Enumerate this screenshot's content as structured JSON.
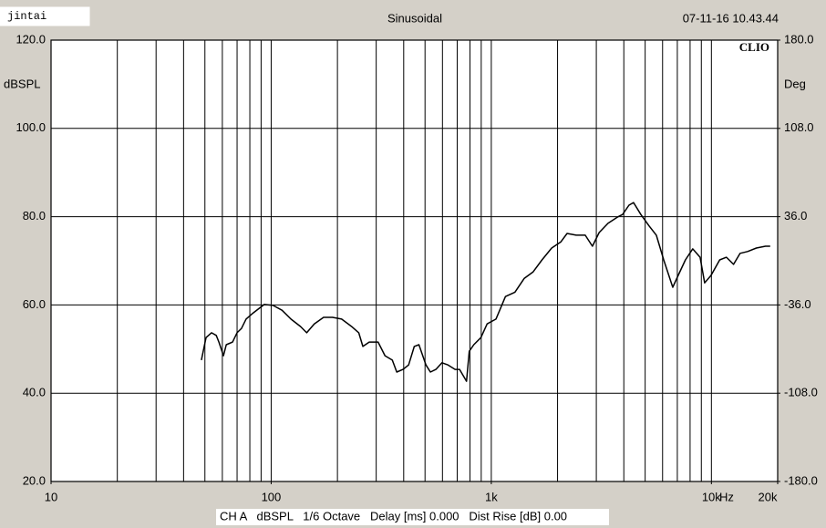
{
  "chart_data": {
    "type": "line",
    "title": "Sinusoidal",
    "user": "jintai",
    "timestamp": "07-11-16 10.43.44",
    "logo": "CLIO",
    "ylabel": "dBSPL",
    "y2label": "Deg",
    "xunit": "Hz",
    "footer": "CH A   dBSPL   1/6 Octave   Delay [ms] 0.000   Dist Rise [dB] 0.00",
    "xscale": "log",
    "xlim": [
      10,
      20000
    ],
    "xticks": [
      10,
      100,
      {
        "value": 1000,
        "label": "1k"
      },
      {
        "value": 10000,
        "label": "10k"
      },
      {
        "value": 20000,
        "label": "20k"
      }
    ],
    "xgrid": [
      20,
      30,
      40,
      50,
      60,
      70,
      80,
      90,
      100,
      200,
      300,
      400,
      500,
      600,
      700,
      800,
      900,
      1000,
      2000,
      3000,
      4000,
      5000,
      6000,
      7000,
      8000,
      9000,
      10000
    ],
    "ylim": [
      20,
      120
    ],
    "yticks": [
      {
        "value": 20,
        "label": "20.0"
      },
      {
        "value": 40,
        "label": "40.0"
      },
      {
        "value": 60,
        "label": "60.0"
      },
      {
        "value": 80,
        "label": "80.0"
      },
      {
        "value": 100,
        "label": "100.0"
      },
      {
        "value": 120,
        "label": "120.0"
      }
    ],
    "y2lim": [
      -180,
      180
    ],
    "y2ticks": [
      {
        "value": -180,
        "label": "-180.0"
      },
      {
        "value": -108,
        "label": "-108.0"
      },
      {
        "value": -36,
        "label": "-36.0"
      },
      {
        "value": 36,
        "label": "36.0"
      },
      {
        "value": 108,
        "label": "108.0"
      },
      {
        "value": 180,
        "label": "180.0"
      }
    ],
    "grid": true,
    "x": [
      48.2,
      50.6,
      53.6,
      56.3,
      57.9,
      60.7,
      62.5,
      66.8,
      70,
      73.3,
      76.9,
      82.9,
      93,
      102,
      112,
      123,
      136,
      145,
      157,
      173,
      190,
      209,
      232,
      250,
      261,
      279,
      306,
      329,
      355,
      372,
      397,
      421,
      447,
      469,
      505,
      529,
      560,
      597,
      636,
      685,
      718,
      772,
      794,
      833,
      897,
      957,
      1050,
      1160,
      1280,
      1410,
      1550,
      1700,
      1880,
      2070,
      2210,
      2430,
      2670,
      2880,
      3090,
      3390,
      3740,
      3950,
      4220,
      4430,
      4780,
      5210,
      5620,
      6070,
      6670,
      7130,
      7620,
      8220,
      8880,
      9320,
      9960,
      10900,
      11700,
      12600,
      13500,
      14600,
      16000,
      17600,
      18500
    ],
    "series": [
      {
        "name": "CH A",
        "color": "#000000",
        "values": [
          47.5,
          52.6,
          53.7,
          53.1,
          51.6,
          48.5,
          51,
          51.6,
          53.7,
          54.7,
          56.8,
          58.2,
          60.1,
          59.9,
          58.8,
          56.8,
          55.1,
          53.7,
          55.7,
          57.2,
          57.2,
          56.8,
          55.1,
          53.7,
          50.6,
          51.6,
          51.6,
          48.5,
          47.5,
          44.8,
          45.4,
          46.4,
          50.6,
          51,
          46.4,
          44.8,
          45.4,
          46.9,
          46.4,
          45.4,
          45.4,
          42.7,
          49.5,
          51,
          52.6,
          55.7,
          56.8,
          61.9,
          62.9,
          66,
          67.5,
          70.2,
          72.9,
          74.3,
          76.2,
          75.8,
          75.8,
          73.3,
          76.4,
          78.5,
          79.9,
          80.5,
          82.6,
          83.2,
          80.5,
          77.9,
          75.8,
          70.2,
          64,
          67.1,
          70.2,
          72.7,
          70.8,
          65,
          66.7,
          70.2,
          70.8,
          69.2,
          71.7,
          72.1,
          72.9,
          73.3,
          73.3
        ]
      }
    ]
  }
}
